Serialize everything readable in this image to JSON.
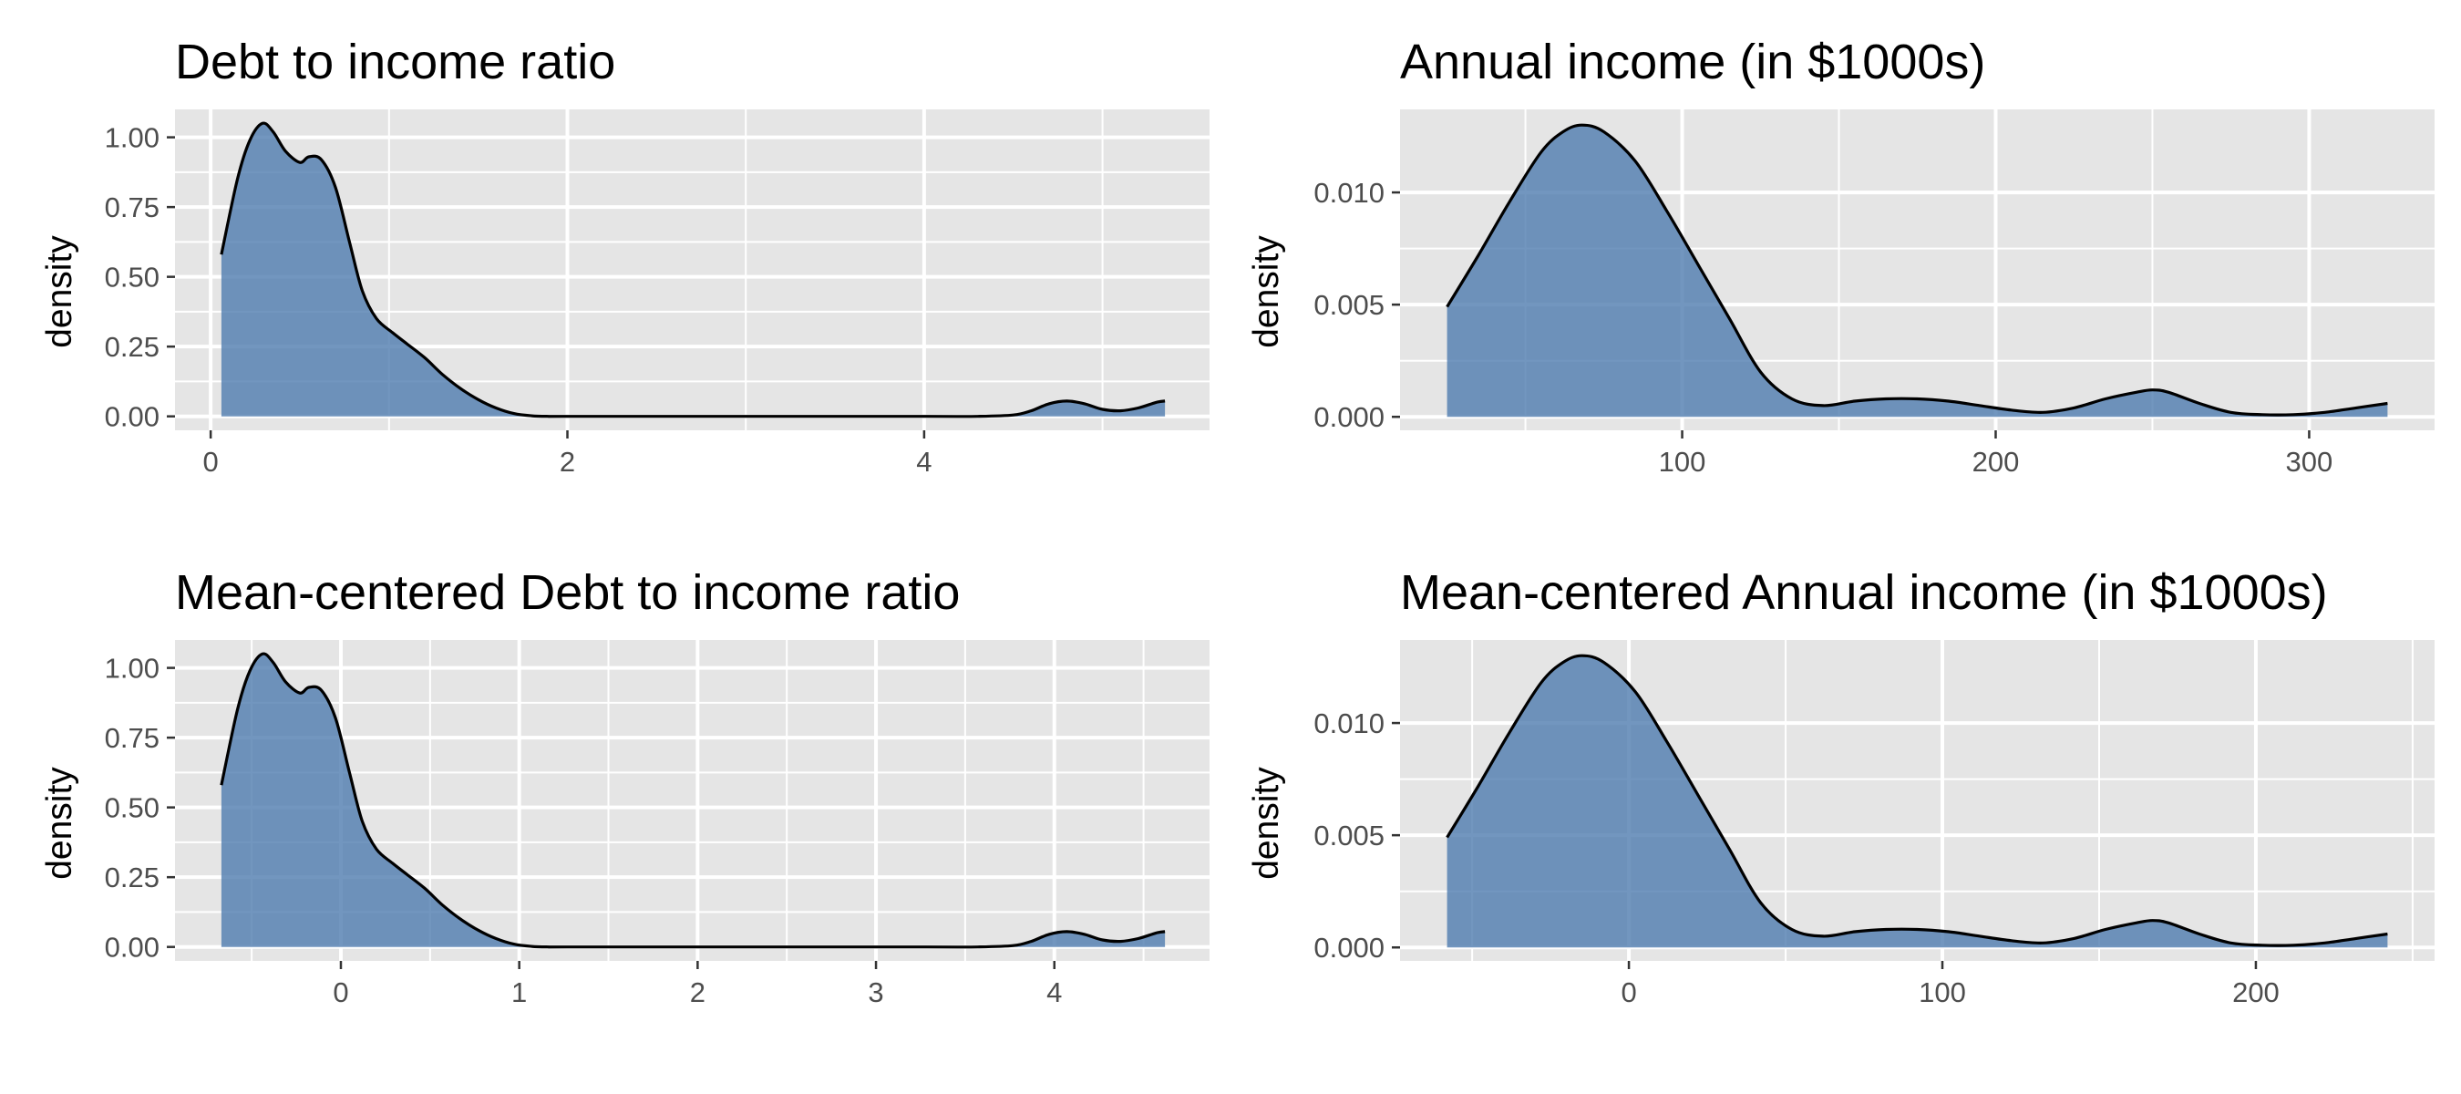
{
  "colors": {
    "fill": "#4f7caf",
    "line": "#000000",
    "panel": "#e5e5e5",
    "grid": "#ffffff"
  },
  "chart_data": [
    {
      "type": "area",
      "title": "Debt to income ratio",
      "xlabel": "",
      "ylabel": "density",
      "xlim": [
        -0.2,
        5.6
      ],
      "ylim": [
        -0.05,
        1.1
      ],
      "xticks": [
        0,
        2,
        4
      ],
      "xtick_labels": [
        "0",
        "2",
        "4"
      ],
      "yticks": [
        0,
        0.25,
        0.5,
        0.75,
        1.0
      ],
      "ytick_labels": [
        "0.00",
        "0.25",
        "0.50",
        "0.75",
        "1.00"
      ],
      "grid": true,
      "x": [
        0.06,
        0.15,
        0.22,
        0.29,
        0.35,
        0.42,
        0.5,
        0.55,
        0.62,
        0.7,
        0.78,
        0.85,
        0.93,
        1.02,
        1.1,
        1.2,
        1.3,
        1.4,
        1.5,
        1.6,
        1.7,
        1.8,
        1.9,
        2.0,
        3.0,
        4.0,
        4.3,
        4.5,
        4.6,
        4.7,
        4.8,
        4.9,
        5.0,
        5.1,
        5.2,
        5.3,
        5.35
      ],
      "y": [
        0.58,
        0.85,
        0.99,
        1.05,
        1.02,
        0.95,
        0.91,
        0.93,
        0.92,
        0.82,
        0.62,
        0.45,
        0.35,
        0.3,
        0.26,
        0.21,
        0.15,
        0.1,
        0.06,
        0.03,
        0.01,
        0.002,
        0.0,
        0.0,
        0.0,
        0.0,
        0.0,
        0.005,
        0.02,
        0.045,
        0.055,
        0.045,
        0.025,
        0.02,
        0.03,
        0.05,
        0.055
      ]
    },
    {
      "type": "area",
      "title": "Annual income (in $1000s)",
      "xlabel": "",
      "ylabel": "density",
      "xlim": [
        10,
        340
      ],
      "ylim": [
        -0.0006,
        0.0137
      ],
      "xticks": [
        100,
        200,
        300
      ],
      "xtick_labels": [
        "100",
        "200",
        "300"
      ],
      "yticks": [
        0,
        0.005,
        0.01
      ],
      "ytick_labels": [
        "0.000",
        "0.005",
        "0.010"
      ],
      "grid": true,
      "x": [
        25,
        35,
        45,
        55,
        62,
        68,
        75,
        85,
        95,
        105,
        115,
        125,
        135,
        145,
        155,
        165,
        175,
        185,
        195,
        205,
        215,
        225,
        235,
        245,
        250,
        255,
        265,
        275,
        285,
        295,
        305,
        315,
        325
      ],
      "y": [
        0.0049,
        0.0072,
        0.0096,
        0.0118,
        0.0127,
        0.013,
        0.0127,
        0.0114,
        0.0092,
        0.0068,
        0.0044,
        0.002,
        0.0008,
        0.0005,
        0.0007,
        0.0008,
        0.0008,
        0.0007,
        0.0005,
        0.0003,
        0.0002,
        0.0004,
        0.0008,
        0.0011,
        0.0012,
        0.0011,
        0.0006,
        0.0002,
        0.0001,
        0.0001,
        0.0002,
        0.0004,
        0.0006
      ]
    },
    {
      "type": "area",
      "title": "Mean-centered Debt to income ratio",
      "xlabel": "",
      "ylabel": "density",
      "xlim": [
        -0.93,
        4.87
      ],
      "ylim": [
        -0.05,
        1.1
      ],
      "xticks": [
        0,
        1,
        2,
        3,
        4
      ],
      "xtick_labels": [
        "0",
        "1",
        "2",
        "3",
        "4"
      ],
      "yticks": [
        0,
        0.25,
        0.5,
        0.75,
        1.0
      ],
      "ytick_labels": [
        "0.00",
        "0.25",
        "0.50",
        "0.75",
        "1.00"
      ],
      "grid": true,
      "x": [
        -0.67,
        -0.58,
        -0.51,
        -0.44,
        -0.38,
        -0.31,
        -0.23,
        -0.18,
        -0.11,
        -0.03,
        0.05,
        0.12,
        0.2,
        0.29,
        0.37,
        0.47,
        0.57,
        0.67,
        0.77,
        0.87,
        0.97,
        1.07,
        1.17,
        1.27,
        2.27,
        3.27,
        3.57,
        3.77,
        3.87,
        3.97,
        4.07,
        4.17,
        4.27,
        4.37,
        4.47,
        4.57,
        4.62
      ],
      "y": [
        0.58,
        0.85,
        0.99,
        1.05,
        1.02,
        0.95,
        0.91,
        0.93,
        0.92,
        0.82,
        0.62,
        0.45,
        0.35,
        0.3,
        0.26,
        0.21,
        0.15,
        0.1,
        0.06,
        0.03,
        0.01,
        0.002,
        0.0,
        0.0,
        0.0,
        0.0,
        0.0,
        0.005,
        0.02,
        0.045,
        0.055,
        0.045,
        0.025,
        0.02,
        0.03,
        0.05,
        0.055
      ]
    },
    {
      "type": "area",
      "title": "Mean-centered Annual income (in $1000s)",
      "xlabel": "",
      "ylabel": "density",
      "xlim": [
        -73,
        257
      ],
      "ylim": [
        -0.0006,
        0.0137
      ],
      "xticks": [
        0,
        100,
        200
      ],
      "xtick_labels": [
        "0",
        "100",
        "200"
      ],
      "yticks": [
        0,
        0.005,
        0.01
      ],
      "ytick_labels": [
        "0.000",
        "0.005",
        "0.010"
      ],
      "grid": true,
      "x": [
        -58,
        -48,
        -38,
        -28,
        -21,
        -15,
        -8,
        2,
        12,
        22,
        32,
        42,
        52,
        62,
        72,
        82,
        92,
        102,
        112,
        122,
        132,
        142,
        152,
        162,
        167,
        172,
        182,
        192,
        202,
        212,
        222,
        232,
        242
      ],
      "y": [
        0.0049,
        0.0072,
        0.0096,
        0.0118,
        0.0127,
        0.013,
        0.0127,
        0.0114,
        0.0092,
        0.0068,
        0.0044,
        0.002,
        0.0008,
        0.0005,
        0.0007,
        0.0008,
        0.0008,
        0.0007,
        0.0005,
        0.0003,
        0.0002,
        0.0004,
        0.0008,
        0.0011,
        0.0012,
        0.0011,
        0.0006,
        0.0002,
        0.0001,
        0.0001,
        0.0002,
        0.0004,
        0.0006
      ]
    }
  ]
}
